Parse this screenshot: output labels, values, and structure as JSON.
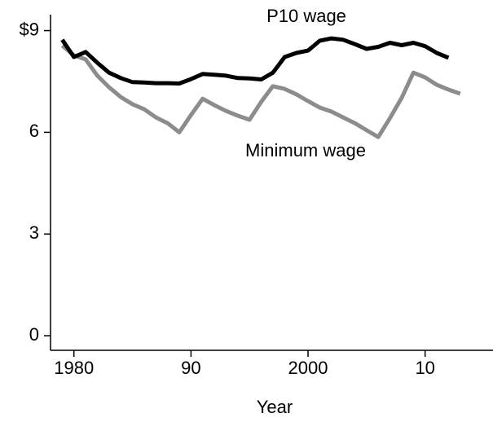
{
  "chart_data": {
    "type": "line",
    "x_label": "Year",
    "x": [
      1979,
      1980,
      1981,
      1982,
      1983,
      1984,
      1985,
      1986,
      1987,
      1988,
      1989,
      1990,
      1991,
      1992,
      1993,
      1994,
      1995,
      1996,
      1997,
      1998,
      1999,
      2000,
      2001,
      2002,
      2003,
      2004,
      2005,
      2006,
      2007,
      2008,
      2009,
      2010,
      2011,
      2012,
      2013
    ],
    "series": [
      {
        "name": "P10 wage",
        "color": "#000000",
        "values": [
          8.73,
          8.22,
          8.37,
          8.05,
          7.76,
          7.6,
          7.48,
          7.47,
          7.45,
          7.45,
          7.44,
          7.57,
          7.72,
          7.7,
          7.67,
          7.6,
          7.59,
          7.56,
          7.76,
          8.22,
          8.34,
          8.41,
          8.7,
          8.77,
          8.73,
          8.6,
          8.46,
          8.52,
          8.64,
          8.57,
          8.64,
          8.54,
          8.34,
          8.2,
          null
        ]
      },
      {
        "name": "Minimum wage",
        "color": "#8c8c8c",
        "values": [
          8.56,
          8.27,
          8.15,
          7.67,
          7.33,
          7.04,
          6.83,
          6.68,
          6.44,
          6.27,
          6.0,
          6.51,
          6.99,
          6.8,
          6.63,
          6.49,
          6.37,
          6.9,
          7.36,
          7.28,
          7.12,
          6.92,
          6.73,
          6.61,
          6.44,
          6.27,
          6.06,
          5.86,
          6.42,
          7.02,
          7.76,
          7.62,
          7.4,
          7.26,
          7.14
        ]
      }
    ],
    "xlim": [
      1978,
      2015.8
    ],
    "ylim": [
      -0.43,
      9.47
    ],
    "xticks": [
      1980,
      {
        "value": 1990,
        "label": "90"
      },
      2000,
      {
        "value": 2010,
        "label": "10"
      }
    ],
    "yticks": [
      0,
      3,
      6,
      {
        "value": 9,
        "label": "$9"
      }
    ]
  }
}
